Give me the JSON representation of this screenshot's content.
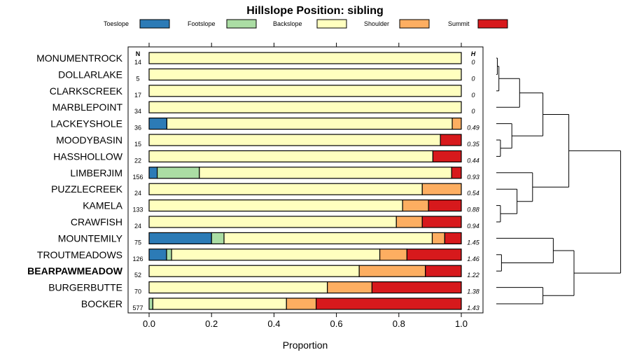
{
  "chart_data": {
    "type": "bar",
    "stacked": true,
    "orientation": "horizontal",
    "title": "Hillslope Position: sibling",
    "xlabel": "Proportion",
    "ylabel": "",
    "xlim": [
      0,
      1
    ],
    "x_ticks": [
      "0.0",
      "0.2",
      "0.4",
      "0.6",
      "0.8",
      "1.0"
    ],
    "n_header": "N",
    "h_header": "H",
    "legend": [
      {
        "name": "Toeslope",
        "color": "#2C7BB6"
      },
      {
        "name": "Footslope",
        "color": "#ABDDA4"
      },
      {
        "name": "Backslope",
        "color": "#FFFFBF"
      },
      {
        "name": "Shoulder",
        "color": "#FDAE61"
      },
      {
        "name": "Summit",
        "color": "#D7191C"
      }
    ],
    "highlight": "BEARPAWMEADOW",
    "rows": [
      {
        "label": "MONUMENTROCK",
        "n": "14",
        "h": "0",
        "values": [
          0,
          0,
          1.0,
          0,
          0
        ]
      },
      {
        "label": "DOLLARLAKE",
        "n": "5",
        "h": "0",
        "values": [
          0,
          0,
          1.0,
          0,
          0
        ]
      },
      {
        "label": "CLARKSCREEK",
        "n": "17",
        "h": "0",
        "values": [
          0,
          0,
          1.0,
          0,
          0
        ]
      },
      {
        "label": "MARBLEPOINT",
        "n": "34",
        "h": "0",
        "values": [
          0,
          0,
          1.0,
          0,
          0
        ]
      },
      {
        "label": "LACKEYSHOLE",
        "n": "36",
        "h": "0.49",
        "values": [
          0.057,
          0,
          0.914,
          0.029,
          0
        ]
      },
      {
        "label": "MOODYBASIN",
        "n": "15",
        "h": "0.35",
        "values": [
          0,
          0,
          0.933,
          0,
          0.067
        ]
      },
      {
        "label": "HASSHOLLOW",
        "n": "22",
        "h": "0.44",
        "values": [
          0,
          0,
          0.909,
          0,
          0.091
        ]
      },
      {
        "label": "LIMBERJIM",
        "n": "156",
        "h": "0.93",
        "values": [
          0.026,
          0.135,
          0.808,
          0,
          0.031
        ]
      },
      {
        "label": "PUZZLECREEK",
        "n": "24",
        "h": "0.54",
        "values": [
          0,
          0,
          0.875,
          0.125,
          0
        ]
      },
      {
        "label": "KAMELA",
        "n": "133",
        "h": "0.88",
        "values": [
          0,
          0,
          0.812,
          0.083,
          0.105
        ]
      },
      {
        "label": "CRAWFISH",
        "n": "24",
        "h": "0.94",
        "values": [
          0,
          0,
          0.792,
          0.083,
          0.125
        ]
      },
      {
        "label": "MOUNTEMILY",
        "n": "75",
        "h": "1.45",
        "values": [
          0.2,
          0.04,
          0.667,
          0.04,
          0.053
        ]
      },
      {
        "label": "TROUTMEADOWS",
        "n": "126",
        "h": "1.46",
        "values": [
          0.056,
          0.016,
          0.667,
          0.087,
          0.174
        ]
      },
      {
        "label": "BEARPAWMEADOW",
        "n": "52",
        "h": "1.22",
        "values": [
          0,
          0,
          0.673,
          0.212,
          0.115
        ]
      },
      {
        "label": "BURGERBUTTE",
        "n": "70",
        "h": "1.38",
        "values": [
          0,
          0,
          0.571,
          0.143,
          0.286
        ]
      },
      {
        "label": "BOCKER",
        "n": "577",
        "h": "1.43",
        "values": [
          0,
          0.012,
          0.428,
          0.095,
          0.465
        ]
      }
    ],
    "dendrogram": {
      "type": "hierarchical clustering of rows",
      "leaf_order": [
        "MONUMENTROCK",
        "DOLLARLAKE",
        "CLARKSCREEK",
        "MARBLEPOINT",
        "LACKEYSHOLE",
        "MOODYBASIN",
        "HASSHOLLOW",
        "LIMBERJIM",
        "PUZZLECREEK",
        "KAMELA",
        "CRAWFISH",
        "MOUNTEMILY",
        "TROUTMEADOWS",
        "BEARPAWMEADOW",
        "BURGERBUTTE",
        "BOCKER"
      ],
      "merges": [
        {
          "a": 0,
          "b": 1,
          "height": 0.02
        },
        {
          "a": -1,
          "b": 2,
          "height": 0.05
        },
        {
          "a": -2,
          "b": 3,
          "height": 0.45
        },
        {
          "a": 5,
          "b": 6,
          "height": 0.08
        },
        {
          "a": 4,
          "b": -4,
          "height": 0.3
        },
        {
          "a": -3,
          "b": -5,
          "height": 0.9
        },
        {
          "a": 9,
          "b": 10,
          "height": 0.08
        },
        {
          "a": 8,
          "b": -7,
          "height": 0.4
        },
        {
          "a": 7,
          "b": -8,
          "height": 0.7
        },
        {
          "a": -6,
          "b": -9,
          "height": 1.4
        },
        {
          "a": 12,
          "b": 13,
          "height": 0.1
        },
        {
          "a": 11,
          "b": -11,
          "height": 1.1
        },
        {
          "a": 14,
          "b": 15,
          "height": 0.9
        },
        {
          "a": -12,
          "b": -13,
          "height": 1.5
        },
        {
          "a": -10,
          "b": -14,
          "height": 2.4
        }
      ]
    }
  }
}
